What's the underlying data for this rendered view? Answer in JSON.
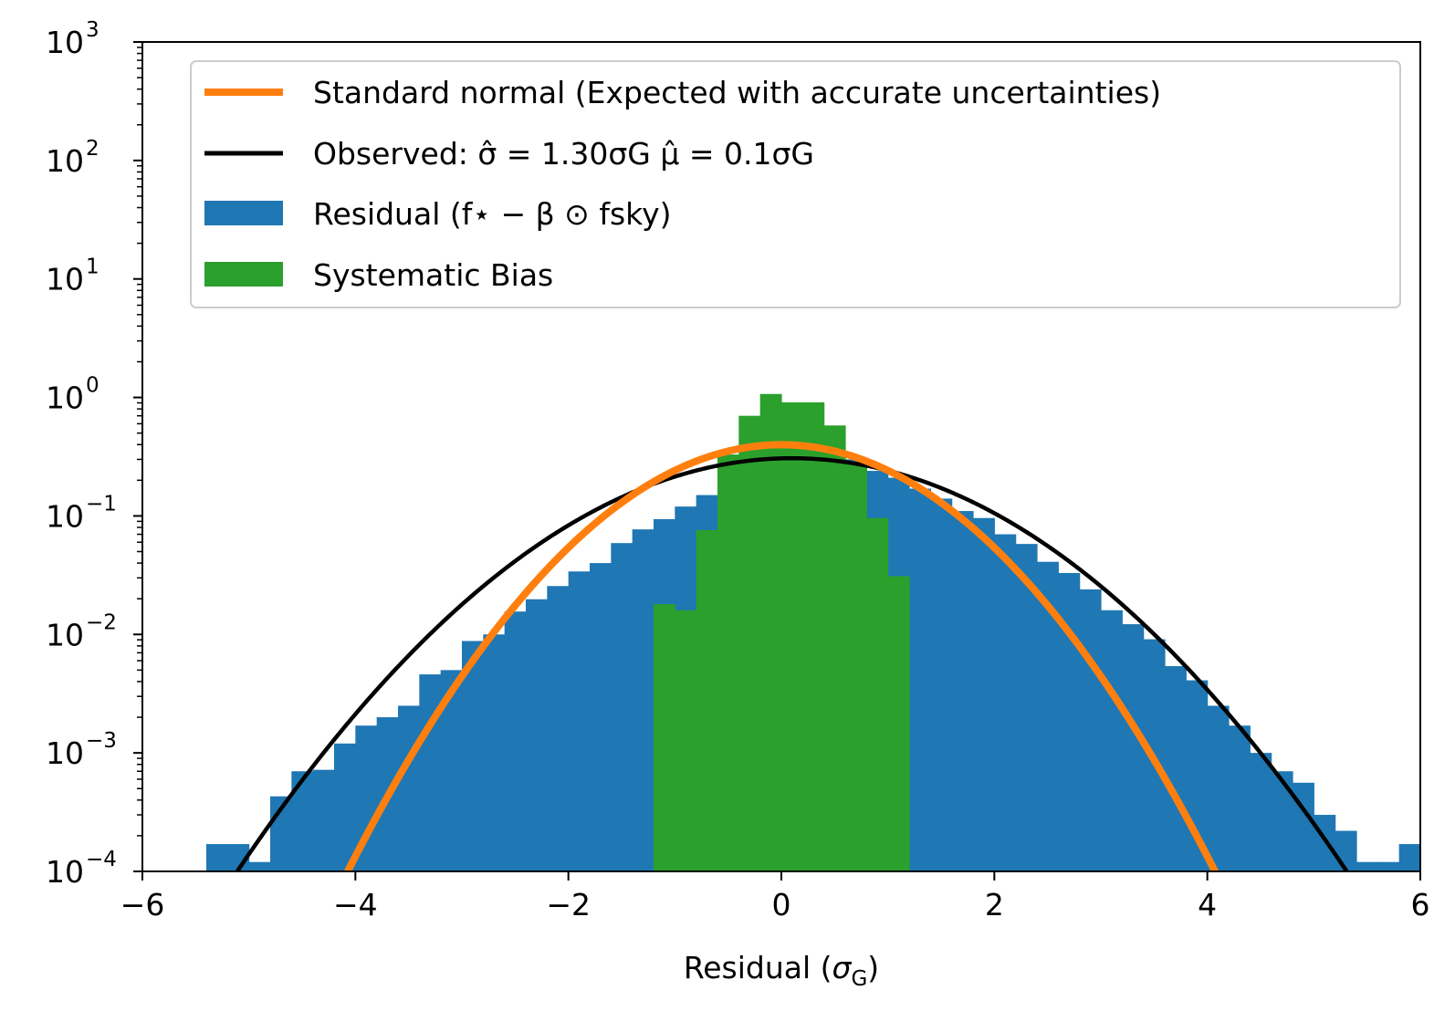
{
  "chart_data": {
    "type": "histogram",
    "xlabel": "Residual (σG)",
    "xlabel_parts": {
      "prefix": "Residual (",
      "sigma": "σ",
      "sub": "G",
      "suffix": ")"
    },
    "xlim": [
      -6,
      6
    ],
    "ylim": [
      0.0001,
      1000
    ],
    "yscale": "log",
    "xticks": [
      -6,
      -4,
      -2,
      0,
      2,
      4,
      6
    ],
    "xtick_labels": [
      "−6",
      "−4",
      "−2",
      "0",
      "2",
      "4",
      "6"
    ],
    "yticks": [
      {
        "exp": -4,
        "base": "10",
        "sup": "−4"
      },
      {
        "exp": -3,
        "base": "10",
        "sup": "−3"
      },
      {
        "exp": -2,
        "base": "10",
        "sup": "−2"
      },
      {
        "exp": -1,
        "base": "10",
        "sup": "−1"
      },
      {
        "exp": 0,
        "base": "10",
        "sup": "0"
      },
      {
        "exp": 1,
        "base": "10",
        "sup": "1"
      },
      {
        "exp": 2,
        "base": "10",
        "sup": "2"
      },
      {
        "exp": 3,
        "base": "10",
        "sup": "3"
      }
    ],
    "legend_position": "top",
    "legend": [
      {
        "key": "standard",
        "label": "Standard normal (Expected with accurate uncertainties)"
      },
      {
        "key": "observed",
        "label": "Observed: σ̂ = 1.30σG   μ̂ = 0.1σG"
      },
      {
        "key": "residual",
        "label": "Residual (f⋆ − β ⊙ fsky)"
      },
      {
        "key": "bias",
        "label": "Systematic Bias"
      }
    ],
    "series": [
      {
        "key": "residual",
        "name": "Residual",
        "kind": "bar",
        "color": "#1f77b4",
        "bin_width": 0.2,
        "bins": [
          [
            -5.4,
            0.00017
          ],
          [
            -5.2,
            0.00017
          ],
          [
            -5.0,
            0.00012
          ],
          [
            -4.8,
            0.00043
          ],
          [
            -4.6,
            0.0007
          ],
          [
            -4.4,
            0.00072
          ],
          [
            -4.2,
            0.0012
          ],
          [
            -4.0,
            0.0017
          ],
          [
            -3.8,
            0.002
          ],
          [
            -3.6,
            0.0025
          ],
          [
            -3.4,
            0.0046
          ],
          [
            -3.2,
            0.005
          ],
          [
            -3.0,
            0.0088
          ],
          [
            -2.8,
            0.01
          ],
          [
            -2.6,
            0.0156
          ],
          [
            -2.4,
            0.0198
          ],
          [
            -2.2,
            0.0256
          ],
          [
            -2.0,
            0.034
          ],
          [
            -1.8,
            0.04
          ],
          [
            -1.6,
            0.059
          ],
          [
            -1.4,
            0.077
          ],
          [
            -1.2,
            0.094
          ],
          [
            -1.0,
            0.12
          ],
          [
            -0.8,
            0.15
          ],
          [
            -0.6,
            0.19
          ],
          [
            -0.4,
            0.22
          ],
          [
            -0.2,
            0.26
          ],
          [
            0.0,
            0.29
          ],
          [
            0.2,
            0.31
          ],
          [
            0.4,
            0.32
          ],
          [
            0.6,
            0.3
          ],
          [
            0.8,
            0.24
          ],
          [
            1.0,
            0.21
          ],
          [
            1.2,
            0.17
          ],
          [
            1.4,
            0.14
          ],
          [
            1.6,
            0.11
          ],
          [
            1.8,
            0.096
          ],
          [
            2.0,
            0.07
          ],
          [
            2.2,
            0.058
          ],
          [
            2.4,
            0.041
          ],
          [
            2.6,
            0.033
          ],
          [
            2.8,
            0.024
          ],
          [
            3.0,
            0.016
          ],
          [
            3.2,
            0.0122
          ],
          [
            3.4,
            0.0091
          ],
          [
            3.6,
            0.0054
          ],
          [
            3.8,
            0.0041
          ],
          [
            4.0,
            0.0025
          ],
          [
            4.2,
            0.0017
          ],
          [
            4.4,
            0.001
          ],
          [
            4.6,
            0.0007
          ],
          [
            4.8,
            0.00056
          ],
          [
            5.0,
            0.0003
          ],
          [
            5.2,
            0.00022
          ],
          [
            5.4,
            0.00012
          ],
          [
            5.6,
            0.00012
          ],
          [
            5.8,
            0.00017
          ]
        ]
      },
      {
        "key": "bias",
        "name": "Systematic Bias",
        "kind": "bar",
        "color": "#2ca02c",
        "bin_width": 0.2,
        "bins": [
          [
            -1.2,
            0.018
          ],
          [
            -1.0,
            0.016
          ],
          [
            -0.8,
            0.076
          ],
          [
            -0.6,
            0.33
          ],
          [
            -0.4,
            0.7
          ],
          [
            -0.2,
            1.07
          ],
          [
            0.0,
            0.91
          ],
          [
            0.2,
            0.91
          ],
          [
            0.4,
            0.58
          ],
          [
            0.6,
            0.28
          ],
          [
            0.8,
            0.096
          ],
          [
            1.0,
            0.031
          ]
        ]
      },
      {
        "key": "observed",
        "name": "Observed",
        "kind": "line",
        "color": "#000000",
        "mu": 0.1,
        "sigma": 1.3
      },
      {
        "key": "standard",
        "name": "Standard normal",
        "kind": "line",
        "color": "#ff7f0e",
        "mu": 0,
        "sigma": 1
      }
    ]
  }
}
